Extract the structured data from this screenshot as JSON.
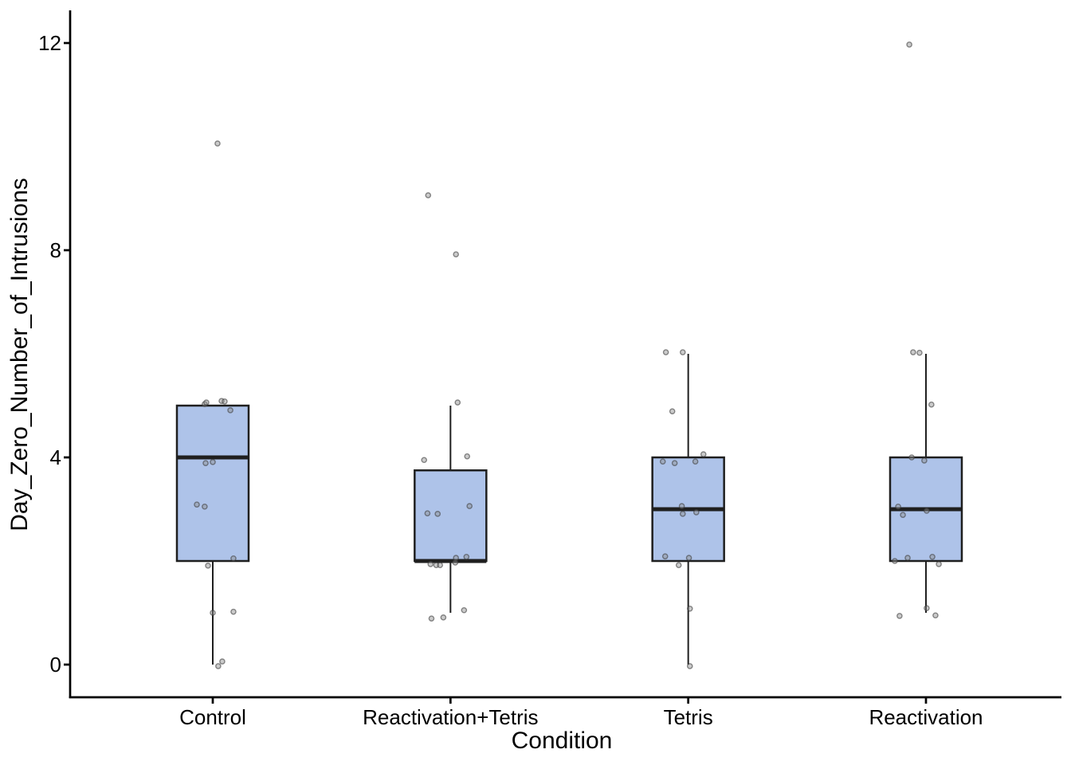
{
  "figure": {
    "background": "#ffffff"
  },
  "chart_data": {
    "type": "boxplot",
    "title": "",
    "xlabel": "Condition",
    "ylabel": "Day_Zero_Number_of_Intrusions",
    "categories": [
      "Control",
      "Reactivation+Tetris",
      "Tetris",
      "Reactivation"
    ],
    "yticks": [
      0,
      4,
      8,
      12
    ],
    "ylim": [
      -0.65,
      12.65
    ],
    "grid": false,
    "legend": "none",
    "colors": {
      "box_fill": "#aec3e9",
      "box_stroke": "#1f1f1f",
      "axis": "#000000",
      "point_fill": "#8c8c8c",
      "point_stroke": "#404040"
    },
    "boxes": [
      {
        "category": "Control",
        "q1": 2,
        "median": 4,
        "q3": 5,
        "whisker_low": 0,
        "whisker_high": 5,
        "outliers": [
          10
        ]
      },
      {
        "category": "Reactivation+Tetris",
        "q1": 2,
        "median": 2,
        "q3": 3.75,
        "whisker_low": 1,
        "whisker_high": 5,
        "outliers": [
          9,
          8
        ]
      },
      {
        "category": "Tetris",
        "q1": 2,
        "median": 3,
        "q3": 4,
        "whisker_low": 0,
        "whisker_high": 6,
        "outliers": []
      },
      {
        "category": "Reactivation",
        "q1": 2,
        "median": 3,
        "q3": 4,
        "whisker_low": 1,
        "whisker_high": 6,
        "outliers": [
          12
        ]
      }
    ],
    "points": [
      [
        {
          "offset": 0.02,
          "value": 10.06
        },
        {
          "offset": -0.034,
          "value": 5.03
        },
        {
          "offset": -0.027,
          "value": 5.06
        },
        {
          "offset": 0.037,
          "value": 5.09
        },
        {
          "offset": 0.05,
          "value": 5.08
        },
        {
          "offset": 0.074,
          "value": 4.91
        },
        {
          "offset": -0.03,
          "value": 3.89
        },
        {
          "offset": 0.0,
          "value": 3.91
        },
        {
          "offset": -0.067,
          "value": 3.09
        },
        {
          "offset": -0.034,
          "value": 3.05
        },
        {
          "offset": 0.087,
          "value": 2.05
        },
        {
          "offset": -0.02,
          "value": 1.91
        },
        {
          "offset": 0.0,
          "value": 1.0
        },
        {
          "offset": 0.087,
          "value": 1.02
        },
        {
          "offset": 0.04,
          "value": 0.06
        },
        {
          "offset": 0.023,
          "value": -0.03
        }
      ],
      [
        {
          "offset": -0.094,
          "value": 9.06
        },
        {
          "offset": 0.023,
          "value": 7.92
        },
        {
          "offset": 0.03,
          "value": 5.06
        },
        {
          "offset": -0.111,
          "value": 3.95
        },
        {
          "offset": 0.07,
          "value": 4.02
        },
        {
          "offset": 0.08,
          "value": 3.06
        },
        {
          "offset": -0.097,
          "value": 2.92
        },
        {
          "offset": -0.054,
          "value": 2.91
        },
        {
          "offset": 0.023,
          "value": 2.06
        },
        {
          "offset": 0.067,
          "value": 2.08
        },
        {
          "offset": -0.084,
          "value": 1.94
        },
        {
          "offset": -0.06,
          "value": 1.92
        },
        {
          "offset": -0.044,
          "value": 1.92
        },
        {
          "offset": 0.02,
          "value": 1.97
        },
        {
          "offset": -0.08,
          "value": 0.89
        },
        {
          "offset": -0.03,
          "value": 0.91
        },
        {
          "offset": 0.057,
          "value": 1.05
        }
      ],
      [
        {
          "offset": -0.094,
          "value": 6.03
        },
        {
          "offset": -0.023,
          "value": 6.03
        },
        {
          "offset": -0.067,
          "value": 4.89
        },
        {
          "offset": 0.064,
          "value": 4.06
        },
        {
          "offset": -0.107,
          "value": 3.92
        },
        {
          "offset": -0.057,
          "value": 3.89
        },
        {
          "offset": 0.03,
          "value": 3.92
        },
        {
          "offset": -0.027,
          "value": 3.06
        },
        {
          "offset": -0.023,
          "value": 2.91
        },
        {
          "offset": 0.034,
          "value": 2.94
        },
        {
          "offset": -0.097,
          "value": 2.09
        },
        {
          "offset": 0.003,
          "value": 2.06
        },
        {
          "offset": -0.04,
          "value": 1.92
        },
        {
          "offset": 0.007,
          "value": 1.08
        },
        {
          "offset": 0.007,
          "value": -0.03
        }
      ],
      [
        {
          "offset": -0.07,
          "value": 11.97
        },
        {
          "offset": -0.054,
          "value": 6.03
        },
        {
          "offset": -0.027,
          "value": 6.02
        },
        {
          "offset": 0.023,
          "value": 5.02
        },
        {
          "offset": -0.06,
          "value": 4.0
        },
        {
          "offset": -0.007,
          "value": 3.94
        },
        {
          "offset": -0.117,
          "value": 3.05
        },
        {
          "offset": -0.097,
          "value": 2.89
        },
        {
          "offset": 0.003,
          "value": 2.97
        },
        {
          "offset": -0.131,
          "value": 2.0
        },
        {
          "offset": -0.077,
          "value": 2.06
        },
        {
          "offset": 0.027,
          "value": 2.08
        },
        {
          "offset": 0.054,
          "value": 1.94
        },
        {
          "offset": -0.111,
          "value": 0.94
        },
        {
          "offset": 0.003,
          "value": 1.09
        },
        {
          "offset": 0.04,
          "value": 0.95
        }
      ]
    ]
  }
}
